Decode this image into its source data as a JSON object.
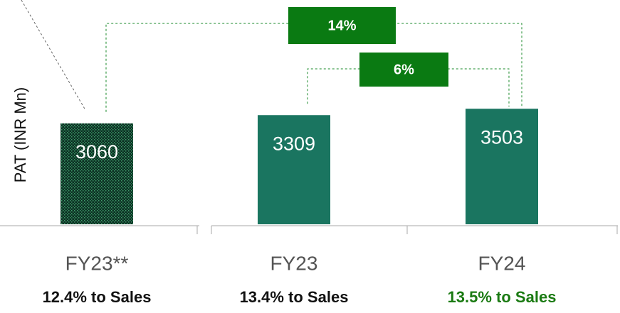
{
  "chart_data": {
    "type": "bar",
    "y_label": "PAT (INR Mn)",
    "categories": [
      "FY23**",
      "FY23",
      "FY24"
    ],
    "values": [
      3060,
      3309,
      3503
    ],
    "colors": [
      "#0b2f22",
      "#1a7560",
      "#1a7560"
    ],
    "hatched": [
      true,
      false,
      false
    ],
    "ylim": [
      0,
      6800
    ],
    "notes": [
      "12.4% to Sales",
      "13.4% to Sales",
      "13.5% to Sales"
    ],
    "note_colors": [
      "#111111",
      "#111111",
      "#1a7a12"
    ],
    "growth": [
      {
        "label": "14%",
        "from": 0,
        "to": 2
      },
      {
        "label": "6%",
        "from": 1,
        "to": 2
      }
    ]
  }
}
